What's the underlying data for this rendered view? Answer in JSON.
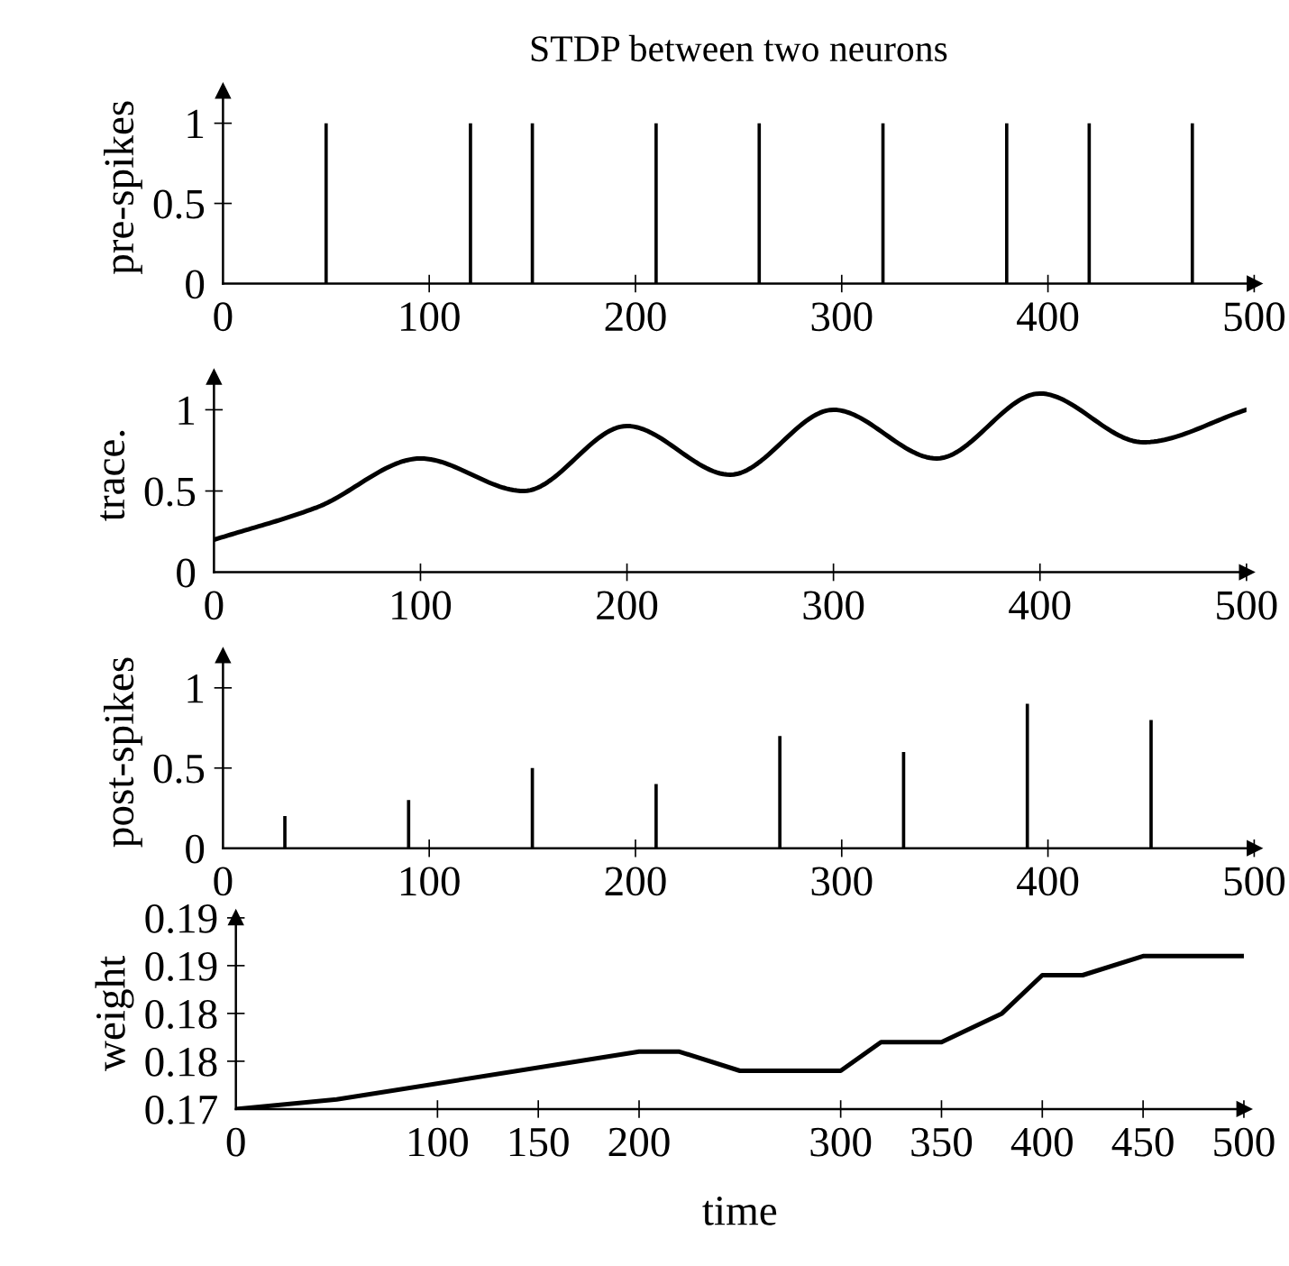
{
  "chart_data": [
    {
      "type": "bar",
      "title": "STDP between two neurons",
      "ylabel": "pre-spikes",
      "x": [
        50,
        120,
        150,
        210,
        260,
        320,
        380,
        420,
        470
      ],
      "values": [
        1,
        1,
        1,
        1,
        1,
        1,
        1,
        1,
        1
      ],
      "color": "#000000",
      "xlim": [
        0,
        500
      ],
      "ylim": [
        0,
        1.2
      ],
      "xticks": [
        0,
        100,
        200,
        300,
        400,
        500
      ],
      "yticks": [
        0,
        0.5,
        1
      ]
    },
    {
      "type": "line",
      "ylabel": "trace.",
      "x": [
        0,
        50,
        100,
        150,
        200,
        250,
        300,
        350,
        400,
        450,
        500
      ],
      "values": [
        0.2,
        0.4,
        0.7,
        0.5,
        0.9,
        0.6,
        1.0,
        0.7,
        1.1,
        0.8,
        1.0
      ],
      "color": "#000000",
      "xlim": [
        0,
        500
      ],
      "ylim": [
        0,
        1.2
      ],
      "xticks": [
        0,
        100,
        200,
        300,
        400,
        500
      ],
      "yticks": [
        0,
        0.5,
        1
      ]
    },
    {
      "type": "bar",
      "ylabel": "post-spikes",
      "x": [
        30,
        90,
        150,
        210,
        270,
        330,
        390,
        450
      ],
      "values": [
        0.2,
        0.3,
        0.5,
        0.4,
        0.7,
        0.6,
        0.9,
        0.8
      ],
      "color": "#000000",
      "xlim": [
        0,
        500
      ],
      "ylim": [
        0,
        1.2
      ],
      "xticks": [
        0,
        100,
        200,
        300,
        400,
        500
      ],
      "yticks": [
        0,
        0.5,
        1
      ]
    },
    {
      "type": "line",
      "xlabel": "time",
      "ylabel": "weight",
      "x": [
        0,
        50,
        200,
        220,
        250,
        300,
        320,
        350,
        380,
        400,
        420,
        450,
        500
      ],
      "values": [
        0.17,
        0.171,
        0.176,
        0.176,
        0.174,
        0.174,
        0.177,
        0.177,
        0.18,
        0.184,
        0.184,
        0.186,
        0.186
      ],
      "color": "#000000",
      "xlim": [
        0,
        500
      ],
      "ylim": [
        0.17,
        0.19
      ],
      "xticks": [
        0,
        100,
        150,
        200,
        300,
        350,
        400,
        450,
        500
      ],
      "yticks": [
        0.17,
        {
          "value": 0.175,
          "label": "0.18"
        },
        0.18,
        {
          "value": 0.185,
          "label": "0.19"
        },
        0.19
      ]
    }
  ]
}
